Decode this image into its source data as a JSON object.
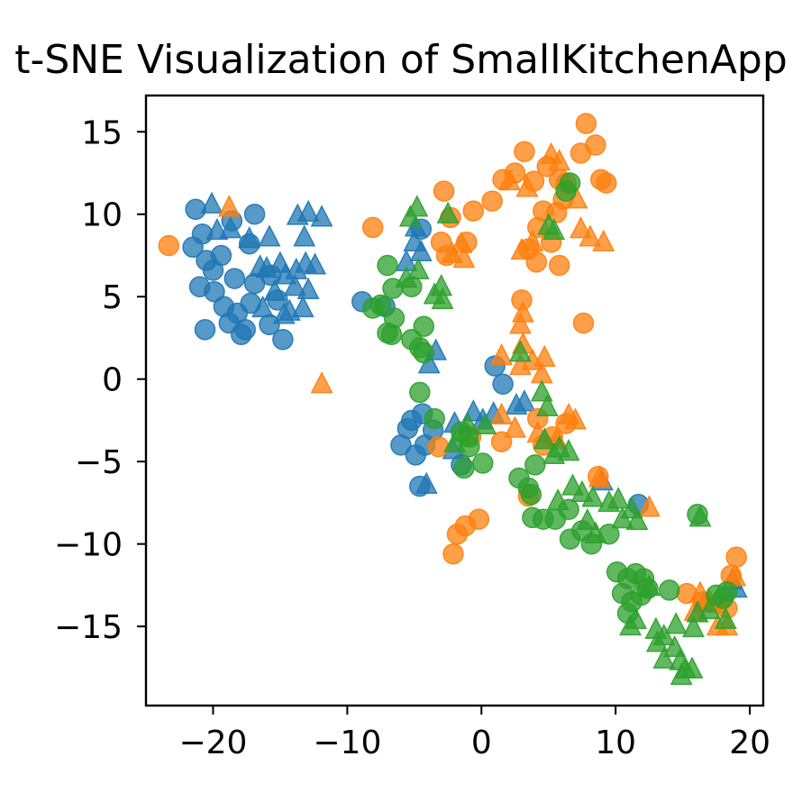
{
  "chart_data": {
    "type": "scatter",
    "title": "t-SNE Visualization of SmallKitchenApp",
    "xlabel": "",
    "ylabel": "",
    "xlim": [
      -25,
      21
    ],
    "ylim": [
      -19.8,
      17.2
    ],
    "xticks": [
      -20,
      -10,
      0,
      10,
      20
    ],
    "yticks": [
      -15,
      -10,
      -5,
      0,
      5,
      10,
      15
    ],
    "xtick_labels": [
      "−20",
      "−10",
      "0",
      "10",
      "20"
    ],
    "ytick_labels": [
      "−15",
      "−10",
      "−5",
      "0",
      "5",
      "10",
      "15"
    ],
    "grid": false,
    "legend": "none",
    "series": [
      {
        "color": "#1f77b4",
        "marker": "circle",
        "points": [
          [
            -21.3,
            10.3
          ],
          [
            -20.8,
            8.8
          ],
          [
            -21.5,
            8.0
          ],
          [
            -20.5,
            7.2
          ],
          [
            -20.0,
            6.6
          ],
          [
            -21.0,
            5.6
          ],
          [
            -19.9,
            5.3
          ],
          [
            -19.2,
            4.4
          ],
          [
            -18.2,
            4.0
          ],
          [
            -18.8,
            3.4
          ],
          [
            -17.6,
            3.0
          ],
          [
            -17.9,
            2.7
          ],
          [
            -17.2,
            4.6
          ],
          [
            -16.9,
            5.8
          ],
          [
            -18.4,
            6.1
          ],
          [
            -19.4,
            7.5
          ],
          [
            -16.9,
            10.0
          ],
          [
            -15.7,
            6.3
          ],
          [
            -15.2,
            4.8
          ],
          [
            -15.8,
            3.3
          ],
          [
            -14.8,
            2.4
          ],
          [
            -20.6,
            3.0
          ],
          [
            -18.6,
            9.6
          ],
          [
            -17.3,
            8.2
          ],
          [
            -8.9,
            4.7
          ],
          [
            -7.2,
            4.4
          ],
          [
            -5.5,
            -3.0
          ],
          [
            -6.0,
            -4.0
          ],
          [
            -4.9,
            -4.6
          ],
          [
            -4.2,
            -4.0
          ],
          [
            -3.6,
            -3.1
          ],
          [
            -4.4,
            -2.1
          ],
          [
            -5.2,
            -2.5
          ],
          [
            -4.6,
            -6.5
          ],
          [
            -1.5,
            -5.2
          ],
          [
            1.0,
            0.8
          ],
          [
            1.6,
            -0.3
          ],
          [
            11.7,
            -7.6
          ],
          [
            -4.5,
            9.1
          ]
        ]
      },
      {
        "color": "#1f77b4",
        "marker": "triangle",
        "points": [
          [
            -20.1,
            10.6
          ],
          [
            -19.7,
            9.0
          ],
          [
            -18.7,
            9.1
          ],
          [
            -17.3,
            8.5
          ],
          [
            -16.5,
            6.8
          ],
          [
            -16.0,
            6.7
          ],
          [
            -15.0,
            7.0
          ],
          [
            -14.6,
            6.3
          ],
          [
            -13.8,
            6.6
          ],
          [
            -13.1,
            7.0
          ],
          [
            -12.4,
            6.9
          ],
          [
            -12.9,
            5.4
          ],
          [
            -13.9,
            5.6
          ],
          [
            -14.3,
            4.1
          ],
          [
            -13.3,
            4.3
          ],
          [
            -14.7,
            3.9
          ],
          [
            -15.8,
            8.6
          ],
          [
            -13.7,
            9.9
          ],
          [
            -12.9,
            10.1
          ],
          [
            -11.9,
            9.8
          ],
          [
            -13.2,
            8.6
          ],
          [
            -16.3,
            4.3
          ],
          [
            -15.4,
            5.3
          ],
          [
            -5.6,
            7.1
          ],
          [
            -4.9,
            9.2
          ],
          [
            -5.0,
            8.3
          ],
          [
            -4.5,
            7.7
          ],
          [
            -3.4,
            1.7
          ],
          [
            -3.9,
            0.9
          ],
          [
            -2.0,
            -2.7
          ],
          [
            -0.6,
            -2.0
          ],
          [
            0.1,
            -2.5
          ],
          [
            0.9,
            -2.1
          ],
          [
            2.6,
            -1.6
          ],
          [
            3.2,
            -1.4
          ],
          [
            -2.1,
            -4.3
          ],
          [
            -4.1,
            -6.4
          ],
          [
            9.0,
            -6.2
          ],
          [
            16.6,
            -13.6
          ],
          [
            18.7,
            -12.2
          ],
          [
            19.0,
            -12.7
          ]
        ]
      },
      {
        "color": "#ff7f0e",
        "marker": "circle",
        "points": [
          [
            -23.3,
            8.1
          ],
          [
            -8.1,
            9.2
          ],
          [
            -2.8,
            11.4
          ],
          [
            -2.3,
            9.8
          ],
          [
            -3.0,
            8.3
          ],
          [
            -2.6,
            7.5
          ],
          [
            -1.1,
            8.3
          ],
          [
            -0.6,
            10.2
          ],
          [
            0.8,
            10.8
          ],
          [
            1.6,
            12.1
          ],
          [
            2.5,
            12.5
          ],
          [
            3.2,
            13.8
          ],
          [
            3.9,
            12.0
          ],
          [
            4.9,
            12.9
          ],
          [
            5.8,
            12.1
          ],
          [
            6.3,
            11.9
          ],
          [
            7.8,
            15.5
          ],
          [
            8.5,
            14.2
          ],
          [
            7.4,
            13.7
          ],
          [
            8.9,
            12.1
          ],
          [
            9.3,
            11.9
          ],
          [
            6.1,
            10.9
          ],
          [
            5.6,
            10.1
          ],
          [
            4.6,
            10.2
          ],
          [
            4.2,
            9.2
          ],
          [
            3.5,
            7.9
          ],
          [
            4.1,
            7.1
          ],
          [
            5.2,
            8.3
          ],
          [
            5.8,
            6.9
          ],
          [
            3.0,
            4.8
          ],
          [
            7.6,
            3.4
          ],
          [
            -1.2,
            -8.9
          ],
          [
            -0.2,
            -8.5
          ],
          [
            -2.1,
            -10.6
          ],
          [
            -1.8,
            -9.4
          ],
          [
            -3.2,
            -4.1
          ],
          [
            -0.8,
            -3.5
          ],
          [
            1.5,
            -3.8
          ],
          [
            4.2,
            -2.4
          ],
          [
            5.3,
            -3.5
          ],
          [
            6.3,
            -2.7
          ],
          [
            4.6,
            -4.0
          ],
          [
            8.7,
            -5.9
          ],
          [
            3.5,
            -7.1
          ],
          [
            15.3,
            -13.0
          ],
          [
            16.5,
            -13.5
          ],
          [
            17.7,
            -13.6
          ],
          [
            18.3,
            -13.9
          ],
          [
            19.0,
            -10.8
          ],
          [
            18.6,
            -11.9
          ]
        ]
      },
      {
        "color": "#ff7f0e",
        "marker": "triangle",
        "points": [
          [
            -18.8,
            10.4
          ],
          [
            -11.9,
            -0.3
          ],
          [
            -1.5,
            8.2
          ],
          [
            -2.2,
            7.6
          ],
          [
            -1.3,
            7.3
          ],
          [
            3.4,
            11.6
          ],
          [
            2.1,
            12.0
          ],
          [
            5.2,
            13.6
          ],
          [
            5.8,
            13.2
          ],
          [
            7.1,
            10.9
          ],
          [
            7.4,
            9.1
          ],
          [
            8.1,
            8.6
          ],
          [
            9.1,
            8.3
          ],
          [
            3.8,
            8.3
          ],
          [
            3.0,
            7.8
          ],
          [
            3.1,
            4.0
          ],
          [
            2.9,
            3.3
          ],
          [
            3.1,
            2.1
          ],
          [
            1.5,
            1.4
          ],
          [
            2.9,
            0.8
          ],
          [
            3.8,
            1.1
          ],
          [
            4.7,
            1.3
          ],
          [
            4.5,
            0.3
          ],
          [
            1.5,
            -2.2
          ],
          [
            2.5,
            -3.0
          ],
          [
            6.5,
            -2.2
          ],
          [
            7.0,
            -2.5
          ],
          [
            4.2,
            -3.3
          ],
          [
            5.6,
            -3.7
          ],
          [
            8.8,
            -6.0
          ],
          [
            12.5,
            -7.8
          ],
          [
            16.3,
            -13.0
          ],
          [
            17.6,
            -15.0
          ],
          [
            18.3,
            -15.0
          ],
          [
            18.9,
            -12.0
          ],
          [
            17.0,
            -13.5
          ],
          [
            15.9,
            -14.1
          ]
        ]
      },
      {
        "color": "#2ca02c",
        "marker": "circle",
        "points": [
          [
            6.3,
            11.4
          ],
          [
            6.6,
            11.9
          ],
          [
            -7.0,
            6.9
          ],
          [
            -6.6,
            5.5
          ],
          [
            -5.2,
            5.6
          ],
          [
            -7.5,
            4.5
          ],
          [
            -8.1,
            4.3
          ],
          [
            -6.5,
            3.7
          ],
          [
            -7.0,
            2.8
          ],
          [
            -6.7,
            2.7
          ],
          [
            -4.3,
            3.2
          ],
          [
            -5.2,
            2.4
          ],
          [
            -4.6,
            1.9
          ],
          [
            -4.3,
            1.6
          ],
          [
            -3.5,
            -2.4
          ],
          [
            -4.6,
            -0.8
          ],
          [
            -1.5,
            -3.2
          ],
          [
            -1.0,
            -3.5
          ],
          [
            -0.9,
            -4.1
          ],
          [
            0.1,
            -5.1
          ],
          [
            -1.3,
            -5.4
          ],
          [
            2.8,
            -6.0
          ],
          [
            3.5,
            -6.6
          ],
          [
            3.7,
            -7.0
          ],
          [
            4.0,
            -5.2
          ],
          [
            3.8,
            -8.4
          ],
          [
            4.6,
            -8.5
          ],
          [
            5.5,
            -8.5
          ],
          [
            6.5,
            -7.9
          ],
          [
            6.6,
            -9.7
          ],
          [
            7.5,
            -9.2
          ],
          [
            8.2,
            -10.0
          ],
          [
            9.5,
            -9.4
          ],
          [
            10.1,
            -11.7
          ],
          [
            10.9,
            -12.1
          ],
          [
            11.5,
            -11.8
          ],
          [
            12.1,
            -12.1
          ],
          [
            10.5,
            -13.0
          ],
          [
            11.2,
            -13.5
          ],
          [
            11.9,
            -13.1
          ],
          [
            12.4,
            -12.7
          ],
          [
            10.9,
            -14.2
          ],
          [
            14.0,
            -12.8
          ],
          [
            16.1,
            -8.2
          ],
          [
            17.5,
            -13.1
          ],
          [
            18.0,
            -13.3
          ],
          [
            18.3,
            -12.9
          ]
        ]
      },
      {
        "color": "#2ca02c",
        "marker": "triangle",
        "points": [
          [
            -5.3,
            9.8
          ],
          [
            -4.8,
            10.4
          ],
          [
            -2.5,
            10.0
          ],
          [
            -5.6,
            6.1
          ],
          [
            -4.7,
            6.6
          ],
          [
            -3.5,
            5.1
          ],
          [
            -3.0,
            5.6
          ],
          [
            -2.9,
            4.8
          ],
          [
            5.4,
            9.0
          ],
          [
            5.0,
            9.3
          ],
          [
            2.9,
            1.6
          ],
          [
            4.5,
            -0.8
          ],
          [
            4.9,
            -1.7
          ],
          [
            -2.0,
            -3.9
          ],
          [
            -1.0,
            -2.8
          ],
          [
            0.3,
            -2.8
          ],
          [
            4.7,
            -3.7
          ],
          [
            5.4,
            -4.6
          ],
          [
            5.8,
            -4.2
          ],
          [
            6.5,
            -4.4
          ],
          [
            5.7,
            -7.4
          ],
          [
            6.8,
            -6.5
          ],
          [
            7.5,
            -6.9
          ],
          [
            8.3,
            -7.2
          ],
          [
            9.5,
            -7.5
          ],
          [
            10.2,
            -7.3
          ],
          [
            11.2,
            -7.9
          ],
          [
            10.5,
            -8.5
          ],
          [
            11.6,
            -8.6
          ],
          [
            7.9,
            -8.6
          ],
          [
            8.5,
            -9.4
          ],
          [
            12.5,
            -12.6
          ],
          [
            11.5,
            -14.6
          ],
          [
            11.1,
            -15.0
          ],
          [
            13.0,
            -15.2
          ],
          [
            13.6,
            -15.6
          ],
          [
            14.5,
            -14.9
          ],
          [
            13.1,
            -16.0
          ],
          [
            14.4,
            -16.3
          ],
          [
            13.6,
            -17.0
          ],
          [
            14.8,
            -17.1
          ],
          [
            15.2,
            -17.6
          ],
          [
            14.9,
            -18.0
          ],
          [
            15.7,
            -17.6
          ],
          [
            16.1,
            -14.2
          ],
          [
            15.8,
            -15.1
          ],
          [
            16.3,
            -8.4
          ],
          [
            17.0,
            -14.0
          ],
          [
            18.2,
            -14.6
          ]
        ]
      }
    ]
  }
}
